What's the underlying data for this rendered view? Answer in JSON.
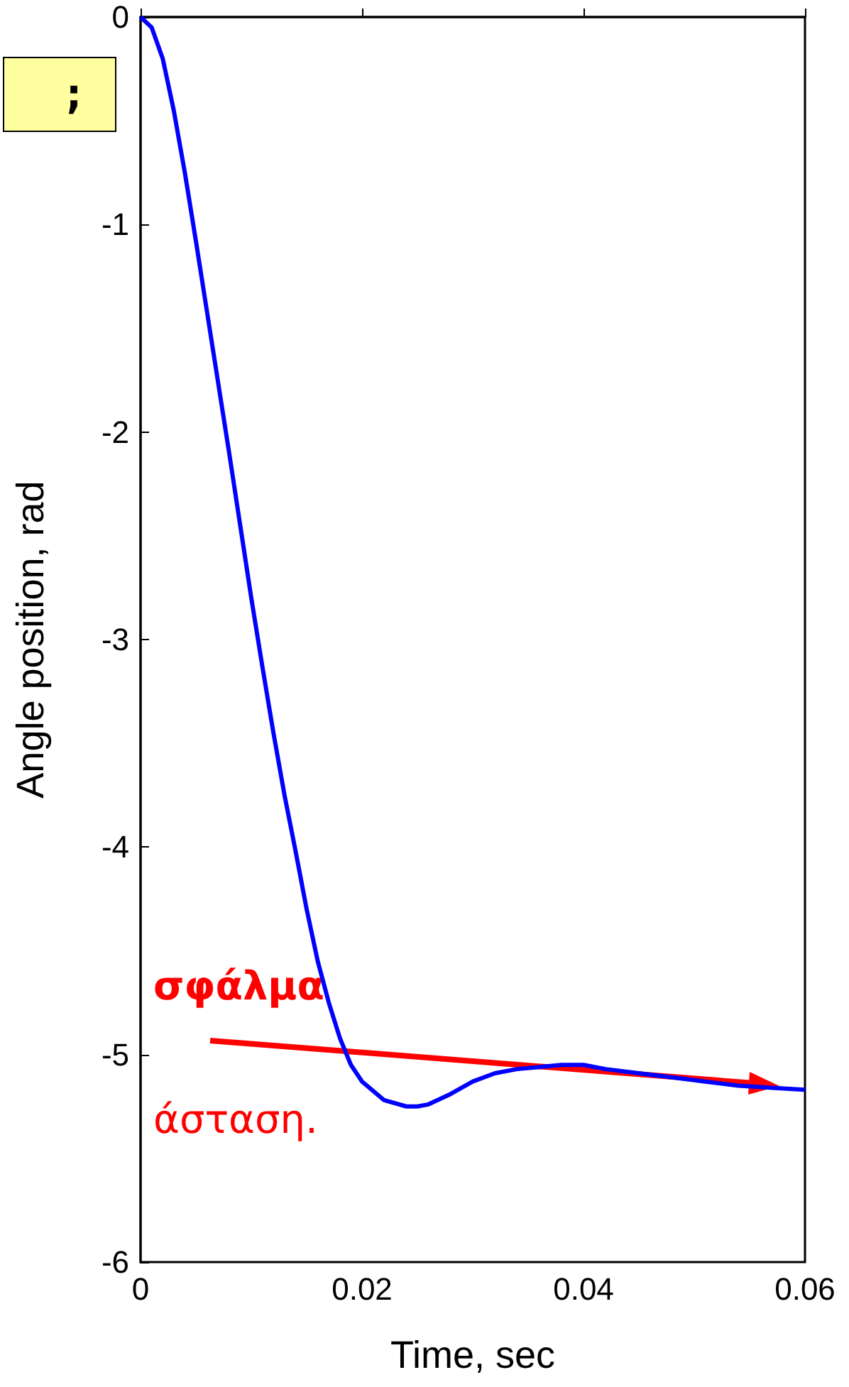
{
  "chart_data": {
    "type": "line",
    "xlabel": "Time, sec",
    "ylabel": "Angle position, rad",
    "x": [
      0,
      0.001,
      0.002,
      0.003,
      0.004,
      0.005,
      0.006,
      0.007,
      0.008,
      0.009,
      0.01,
      0.011,
      0.012,
      0.013,
      0.014,
      0.015,
      0.016,
      0.017,
      0.018,
      0.019,
      0.02,
      0.022,
      0.024,
      0.025,
      0.026,
      0.028,
      0.03,
      0.032,
      0.034,
      0.036,
      0.038,
      0.04,
      0.042,
      0.045,
      0.048,
      0.051,
      0.054,
      0.057,
      0.06
    ],
    "series": [
      {
        "color": "#0000ff",
        "values": [
          0,
          -0.05,
          -0.2,
          -0.45,
          -0.75,
          -1.08,
          -1.42,
          -1.76,
          -2.1,
          -2.45,
          -2.8,
          -3.13,
          -3.45,
          -3.75,
          -4.02,
          -4.3,
          -4.55,
          -4.75,
          -4.92,
          -5.05,
          -5.13,
          -5.22,
          -5.25,
          -5.25,
          -5.24,
          -5.19,
          -5.13,
          -5.09,
          -5.07,
          -5.06,
          -5.05,
          -5.05,
          -5.07,
          -5.09,
          -5.11,
          -5.13,
          -5.15,
          -5.16,
          -5.17
        ]
      }
    ],
    "xlim": [
      0,
      0.06
    ],
    "xticks": [
      0,
      0.02,
      0.04,
      0.06
    ],
    "ylim": [
      -6,
      0
    ],
    "yticks": [
      -6,
      -5,
      -4,
      -3,
      -2,
      -1,
      0
    ],
    "annotations": [
      ";",
      "σφάλμα",
      "άσταση."
    ],
    "grid": false,
    "marker": "none",
    "line_style": "solid"
  }
}
